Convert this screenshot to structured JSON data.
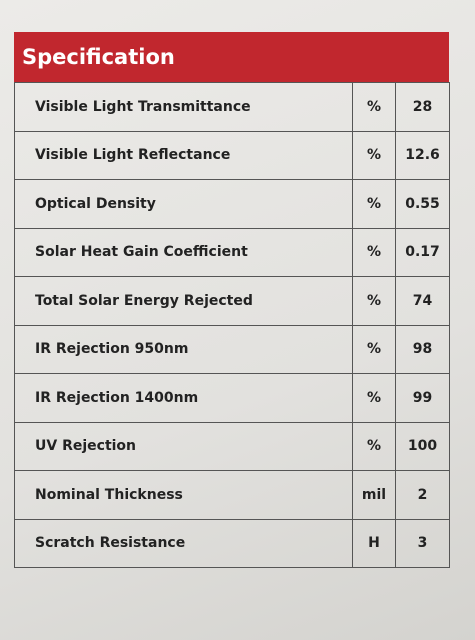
{
  "header": {
    "title": "Specification"
  },
  "table": {
    "rows": [
      [
        "Visible Light Transmittance",
        "%",
        "28"
      ],
      [
        "Visible Light Reflectance",
        "%",
        "12.6"
      ],
      [
        "Optical Density",
        "%",
        "0.55"
      ],
      [
        "Solar Heat Gain Coefficient",
        "%",
        "0.17"
      ],
      [
        "Total Solar Energy Rejected",
        "%",
        "74"
      ],
      [
        "IR Rejection  950nm",
        "%",
        "98"
      ],
      [
        "IR Rejection  1400nm",
        "%",
        "99"
      ],
      [
        "UV Rejection",
        "%",
        "100"
      ],
      [
        "Nominal Thickness",
        "mil",
        "2"
      ],
      [
        "Scratch Resistance",
        "H",
        "3"
      ]
    ]
  }
}
